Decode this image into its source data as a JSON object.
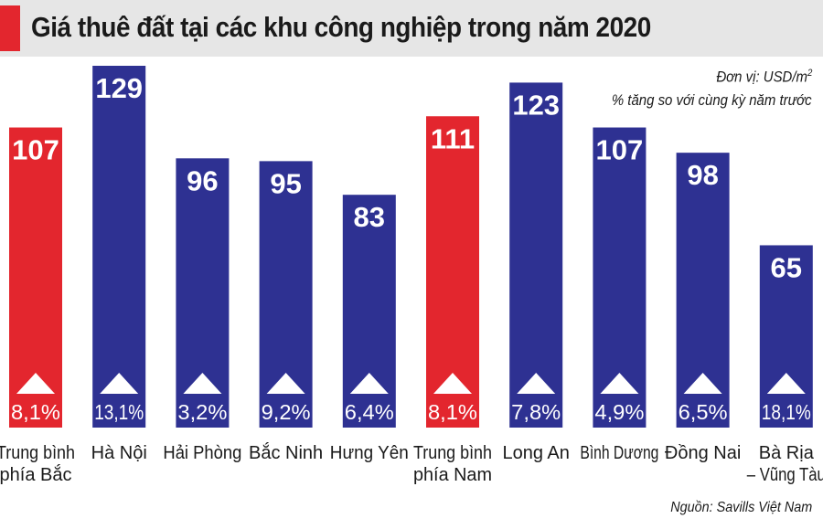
{
  "header": {
    "title": "Giá thuê đất tại các khu công nghiệp trong năm 2020"
  },
  "legend": {
    "unit_prefix": "Đơn vị: USD/m",
    "unit_sup": "2",
    "growth_note": "% tăng so với cùng kỳ năm trước"
  },
  "source": "Nguồn: Savills Việt Nam",
  "colors": {
    "average_bar": "#e3262e",
    "province_bar": "#2e3192",
    "header_bg": "#e6e6e6",
    "accent": "#e3262e"
  },
  "chart_data": {
    "type": "bar",
    "title": "Giá thuê đất tại các khu công nghiệp trong năm 2020",
    "ylabel": "Đơn vị: USD/m2",
    "ylim": [
      0,
      129
    ],
    "grid": false,
    "categories": [
      [
        "Trung bình",
        "phía Bắc"
      ],
      [
        "Hà Nội"
      ],
      [
        "Hải Phòng"
      ],
      [
        "Bắc Ninh"
      ],
      [
        "Hưng Yên"
      ],
      [
        "Trung bình",
        "phía Nam"
      ],
      [
        "Long An"
      ],
      [
        "Bình Dương"
      ],
      [
        "Đồng Nai"
      ],
      [
        "Bà Rịa",
        "– Vũng Tàu"
      ]
    ],
    "values": [
      107,
      129,
      96,
      95,
      83,
      111,
      123,
      107,
      98,
      65
    ],
    "growth": [
      "8,1%",
      "13,1%",
      "3,2%",
      "9,2%",
      "6,4%",
      "8,1%",
      "7,8%",
      "4,9%",
      "6,5%",
      "18,1%"
    ],
    "highlight": [
      true,
      false,
      false,
      false,
      false,
      true,
      false,
      false,
      false,
      false
    ]
  }
}
